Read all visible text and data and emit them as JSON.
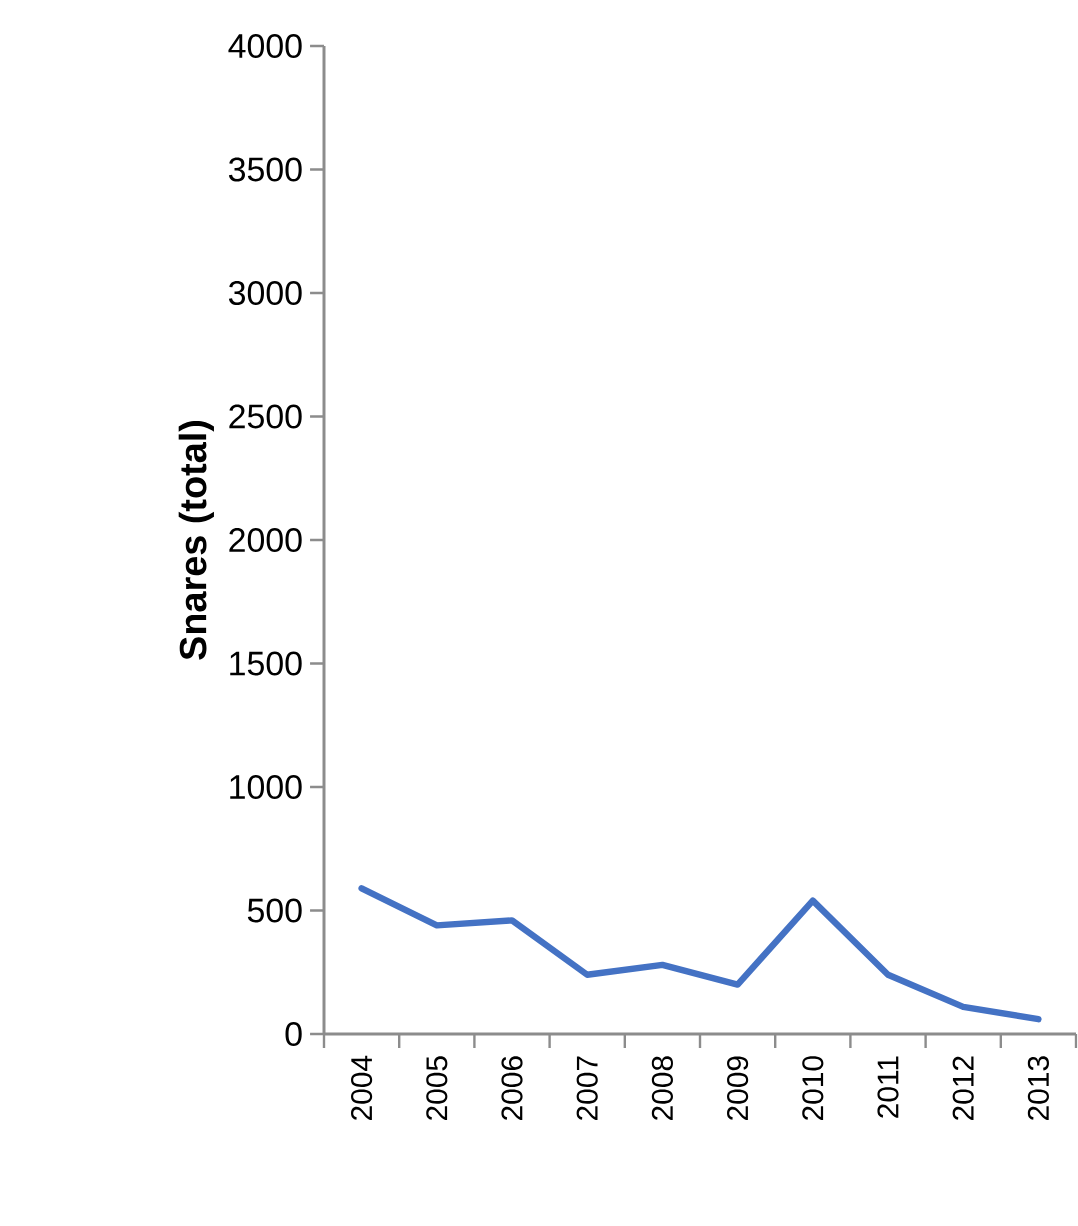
{
  "chart_data": {
    "type": "line",
    "ylabel": "Snares (total)",
    "categories": [
      "2004",
      "2005",
      "2006",
      "2007",
      "2008",
      "2009",
      "2010",
      "2011",
      "2012",
      "2013"
    ],
    "series": [
      {
        "color": "#4472c4",
        "values": [
          590,
          440,
          460,
          240,
          280,
          200,
          540,
          240,
          110,
          60
        ]
      }
    ],
    "ylim": [
      0,
      4000
    ],
    "yticks": [
      0,
      500,
      1000,
      1500,
      2000,
      2500,
      3000,
      3500,
      4000
    ],
    "grid": false,
    "marker": "none",
    "line_style": "solid"
  }
}
